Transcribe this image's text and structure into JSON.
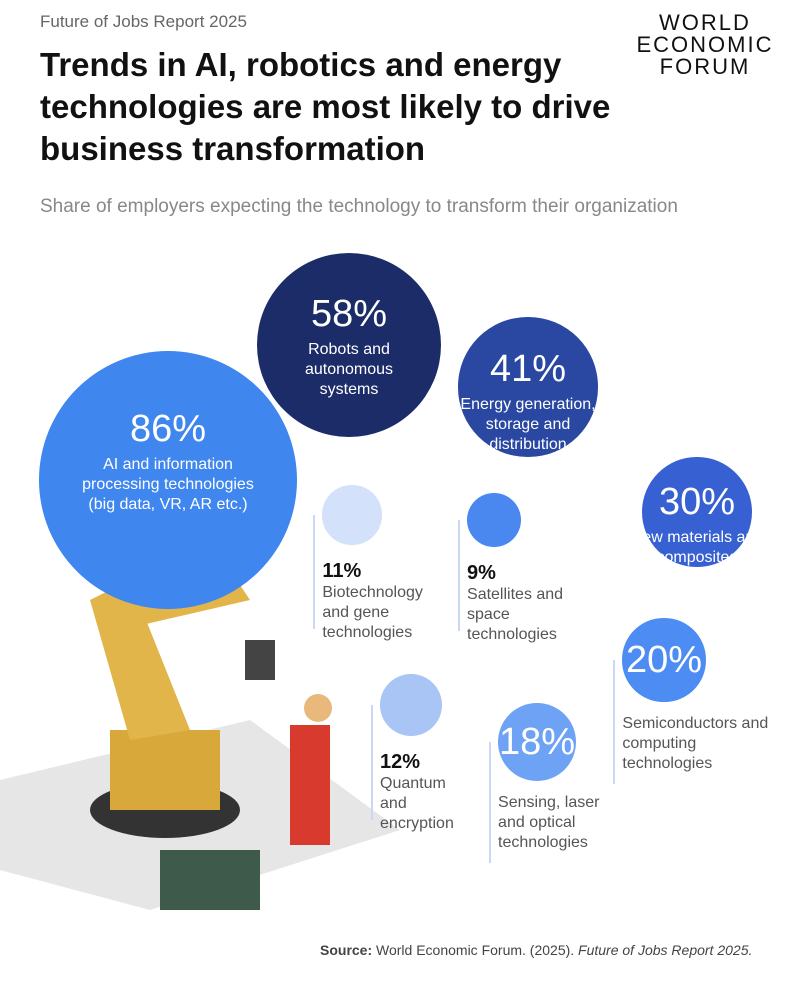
{
  "header": "Future of Jobs Report 2025",
  "logo": [
    "WORLD",
    "ECONOMIC",
    "FORUM"
  ],
  "chart_data": {
    "type": "bubble",
    "title": "Trends in AI, robotics and energy technologies are most likely to drive business transformation",
    "subtitle": "Share of employers expecting the technology to transform their organization",
    "categories": [
      "AI and information processing technologies (big data, VR, AR etc.)",
      "Robots and autonomous systems",
      "Energy generation, storage and distribution",
      "New materials and composites",
      "Semiconductors and computing technologies",
      "Sensing, laser and optical technologies",
      "Quantum and encryption",
      "Biotechnology and gene technologies",
      "Satellites and space technologies"
    ],
    "values": [
      86,
      58,
      41,
      30,
      20,
      18,
      12,
      11,
      9
    ],
    "value_labels": [
      "86%",
      "58%",
      "41%",
      "30%",
      "20%",
      "18%",
      "12%",
      "11%",
      "9%"
    ],
    "colors": [
      "#3f86ef",
      "#1b2c69",
      "#2a48a2",
      "#3761d2",
      "#4c8cf3",
      "#6ea2f4",
      "#a8c5f6",
      "#d3e1fb",
      "#4a87ef"
    ]
  },
  "source": {
    "label": "Source:",
    "text": "World Economic Forum. (2025).",
    "title": "Future of Jobs Report 2025."
  }
}
